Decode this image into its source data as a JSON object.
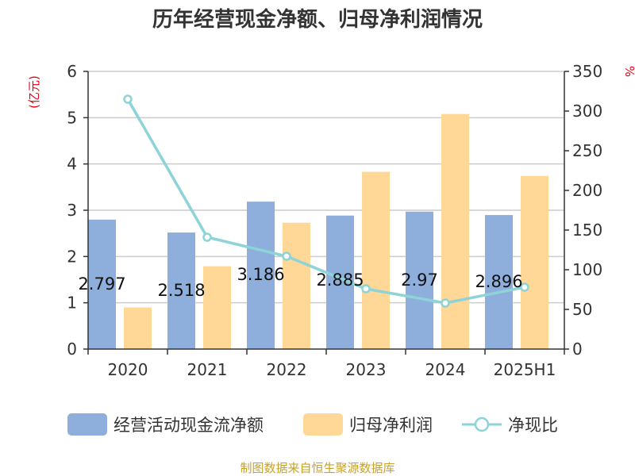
{
  "chart_data": {
    "type": "bar+line",
    "title": "历年经营现金净额、归母净利润情况",
    "categories": [
      "2020",
      "2021",
      "2022",
      "2023",
      "2024",
      "2025H1"
    ],
    "left_axis": {
      "unit": "(亿元)",
      "min": 0,
      "max": 6,
      "ticks": [
        0,
        1,
        2,
        3,
        4,
        5,
        6
      ]
    },
    "right_axis": {
      "unit": "%",
      "min": 0,
      "max": 350,
      "ticks": [
        0,
        50,
        100,
        150,
        200,
        250,
        300,
        350
      ]
    },
    "series": [
      {
        "name": "经营活动现金流净额",
        "type": "bar",
        "axis": "left",
        "color": "#8eaedc",
        "values": [
          2.797,
          2.518,
          3.186,
          2.885,
          2.97,
          2.896
        ],
        "labels": [
          "2.797",
          "2.518",
          "3.186",
          "2.885",
          "2.97",
          "2.896"
        ]
      },
      {
        "name": "归母净利润",
        "type": "bar",
        "axis": "left",
        "color": "#ffd796",
        "values": [
          0.9,
          1.79,
          2.73,
          3.83,
          5.08,
          3.74
        ]
      },
      {
        "name": "净现比",
        "type": "line",
        "axis": "right",
        "color": "#8dd3d8",
        "values": [
          315,
          141,
          117,
          76,
          58,
          78
        ]
      }
    ],
    "grid": true,
    "legend_position": "bottom"
  },
  "footer": {
    "source": "制图数据来自恒生聚源数据库"
  }
}
